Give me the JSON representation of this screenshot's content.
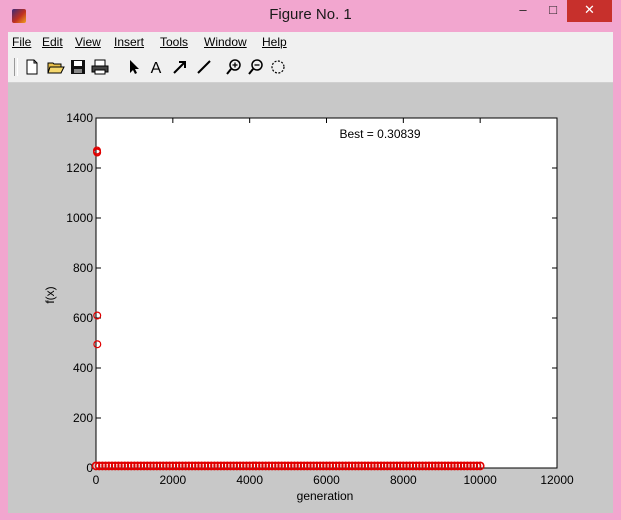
{
  "window": {
    "title": "Figure No. 1",
    "minimize_label": "–",
    "maximize_label": "□",
    "close_label": "✕"
  },
  "menu": {
    "items": [
      {
        "label": "File",
        "name": "menu-file"
      },
      {
        "label": "Edit",
        "name": "menu-edit"
      },
      {
        "label": "View",
        "name": "menu-view"
      },
      {
        "label": "Insert",
        "name": "menu-insert"
      },
      {
        "label": "Tools",
        "name": "menu-tools"
      },
      {
        "label": "Window",
        "name": "menu-window"
      },
      {
        "label": "Help",
        "name": "menu-help"
      }
    ]
  },
  "toolbar": {
    "tools": [
      "new-file-icon",
      "open-folder-icon",
      "save-icon",
      "print-icon",
      "select-arrow-icon",
      "text-icon",
      "arrow-icon",
      "line-icon",
      "zoom-in-icon",
      "zoom-out-icon",
      "rotate-icon"
    ]
  },
  "chart_data": {
    "type": "scatter",
    "title": "",
    "xlabel": "generation",
    "ylabel": "f(x)",
    "xlim": [
      0,
      12000
    ],
    "ylim": [
      0,
      1400
    ],
    "xticks": [
      0,
      2000,
      4000,
      6000,
      8000,
      10000,
      12000
    ],
    "yticks": [
      0,
      200,
      400,
      600,
      800,
      1000,
      1200,
      1400
    ],
    "annotation": "Best = 0.30839",
    "series": [
      {
        "marker": "circle",
        "color": "#e00000",
        "outliers": [
          {
            "x": 0,
            "y": 1270
          },
          {
            "x": 2,
            "y": 1265
          },
          {
            "x": 4,
            "y": 1262
          },
          {
            "x": 6,
            "y": 610
          },
          {
            "x": 8,
            "y": 495
          }
        ],
        "dense_run": {
          "x_start": 0,
          "x_end": 10000,
          "y": 0.30839
        }
      }
    ]
  }
}
